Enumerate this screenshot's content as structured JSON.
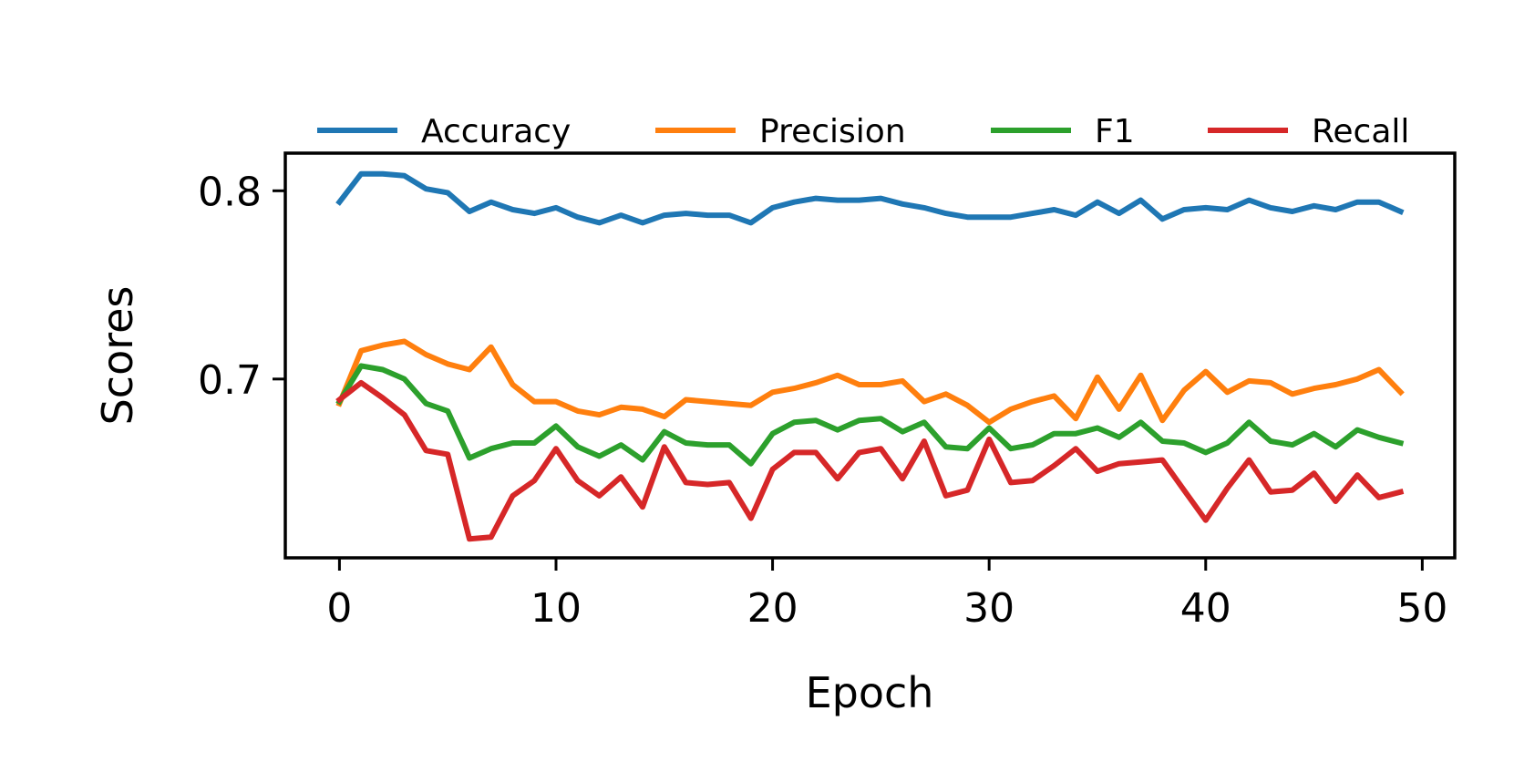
{
  "chart_data": {
    "type": "line",
    "title": "",
    "xlabel": "Epoch",
    "ylabel": "Scores",
    "xlim": [
      -2.5,
      51.5
    ],
    "ylim": [
      0.605,
      0.82
    ],
    "xticks": [
      0,
      10,
      20,
      30,
      40,
      50
    ],
    "yticks": [
      0.7,
      0.8
    ],
    "xtick_labels": [
      "0",
      "10",
      "20",
      "30",
      "40",
      "50"
    ],
    "ytick_labels": [
      "0.7",
      "0.8"
    ],
    "grid": false,
    "legend_position": "top, above plot, 4 columns",
    "x": [
      0,
      1,
      2,
      3,
      4,
      5,
      6,
      7,
      8,
      9,
      10,
      11,
      12,
      13,
      14,
      15,
      16,
      17,
      18,
      19,
      20,
      21,
      22,
      23,
      24,
      25,
      26,
      27,
      28,
      29,
      30,
      31,
      32,
      33,
      34,
      35,
      36,
      37,
      38,
      39,
      40,
      41,
      42,
      43,
      44,
      45,
      46,
      47,
      48,
      49
    ],
    "series": [
      {
        "name": "Accuracy",
        "color": "#1f77b4",
        "values": [
          0.794,
          0.809,
          0.809,
          0.808,
          0.801,
          0.799,
          0.789,
          0.794,
          0.79,
          0.788,
          0.791,
          0.786,
          0.783,
          0.787,
          0.783,
          0.787,
          0.788,
          0.787,
          0.787,
          0.783,
          0.791,
          0.794,
          0.796,
          0.795,
          0.795,
          0.796,
          0.793,
          0.791,
          0.788,
          0.786,
          0.786,
          0.786,
          0.788,
          0.79,
          0.787,
          0.794,
          0.788,
          0.795,
          0.785,
          0.79,
          0.791,
          0.79,
          0.795,
          0.791,
          0.789,
          0.792,
          0.79,
          0.794,
          0.794,
          0.789
        ]
      },
      {
        "name": "Precision",
        "color": "#ff7f0e",
        "values": [
          0.687,
          0.715,
          0.718,
          0.72,
          0.713,
          0.708,
          0.705,
          0.717,
          0.697,
          0.688,
          0.688,
          0.683,
          0.681,
          0.685,
          0.684,
          0.68,
          0.689,
          0.688,
          0.687,
          0.686,
          0.693,
          0.695,
          0.698,
          0.702,
          0.697,
          0.697,
          0.699,
          0.688,
          0.692,
          0.686,
          0.677,
          0.684,
          0.688,
          0.691,
          0.679,
          0.701,
          0.684,
          0.702,
          0.678,
          0.694,
          0.704,
          0.693,
          0.699,
          0.698,
          0.692,
          0.695,
          0.697,
          0.7,
          0.705,
          0.693
        ]
      },
      {
        "name": "F1",
        "color": "#2ca02c",
        "values": [
          0.688,
          0.707,
          0.705,
          0.7,
          0.687,
          0.683,
          0.658,
          0.663,
          0.666,
          0.666,
          0.675,
          0.664,
          0.659,
          0.665,
          0.657,
          0.672,
          0.666,
          0.665,
          0.665,
          0.655,
          0.671,
          0.677,
          0.678,
          0.673,
          0.678,
          0.679,
          0.672,
          0.677,
          0.664,
          0.663,
          0.674,
          0.663,
          0.665,
          0.671,
          0.671,
          0.674,
          0.669,
          0.677,
          0.667,
          0.666,
          0.661,
          0.666,
          0.677,
          0.667,
          0.665,
          0.671,
          0.664,
          0.673,
          0.669,
          0.666
        ]
      },
      {
        "name": "Recall",
        "color": "#d62728",
        "values": [
          0.689,
          0.698,
          0.69,
          0.681,
          0.662,
          0.66,
          0.615,
          0.616,
          0.638,
          0.646,
          0.663,
          0.646,
          0.638,
          0.648,
          0.632,
          0.664,
          0.645,
          0.644,
          0.645,
          0.626,
          0.652,
          0.661,
          0.661,
          0.647,
          0.661,
          0.663,
          0.647,
          0.667,
          0.638,
          0.641,
          0.668,
          0.645,
          0.646,
          0.654,
          0.663,
          0.651,
          0.655,
          0.656,
          0.657,
          0.641,
          0.625,
          0.642,
          0.657,
          0.64,
          0.641,
          0.65,
          0.635,
          0.649,
          0.637,
          0.64
        ]
      }
    ]
  }
}
